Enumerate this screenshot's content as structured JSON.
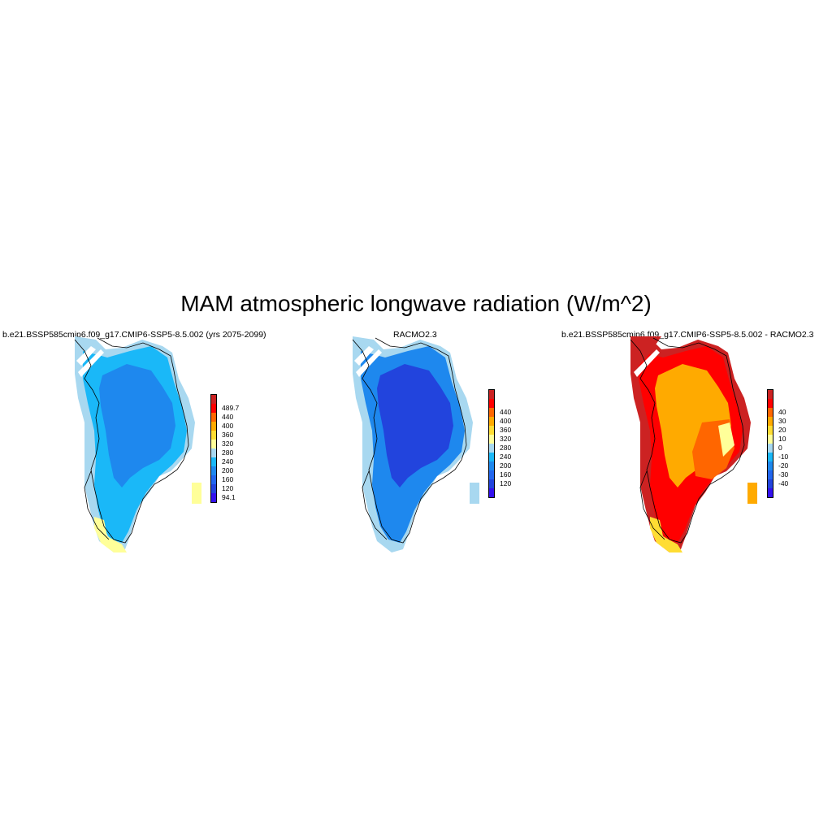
{
  "title": "MAM atmospheric longwave radiation (W/m^2)",
  "panels": [
    {
      "title": "b.e21.BSSP585cmip6.f09_g17.CMIP6-SSP5-8.5.002 (yrs 2075-2099)",
      "colorbar": {
        "colors": [
          "#cc2222",
          "#ff0000",
          "#ff6600",
          "#ffaa00",
          "#ffdd33",
          "#ffff99",
          "#a8d8f0",
          "#1ab8f8",
          "#1e88ee",
          "#2266ee",
          "#2244dd",
          "#3311ee"
        ],
        "labels": [
          "489.7",
          "440",
          "400",
          "360",
          "320",
          "280",
          "240",
          "200",
          "160",
          "120",
          "94.1"
        ]
      },
      "fields": {
        "outer": "#a8d8f0",
        "main": "#1ab8f8",
        "core": "#1e88ee",
        "accent": "#ffff99"
      }
    },
    {
      "title": "RACMO2.3",
      "colorbar": {
        "colors": [
          "#cc2222",
          "#ff0000",
          "#ff6600",
          "#ffaa00",
          "#ffdd33",
          "#ffff99",
          "#a8d8f0",
          "#1ab8f8",
          "#1e88ee",
          "#2266ee",
          "#2244dd",
          "#3311ee"
        ],
        "labels": [
          "440",
          "400",
          "360",
          "320",
          "280",
          "240",
          "200",
          "160",
          "120"
        ]
      },
      "fields": {
        "outer": "#a8d8f0",
        "main": "#1e88ee",
        "core": "#2244dd",
        "accent": "#1ab8f8"
      }
    },
    {
      "title": "b.e21.BSSP585cmip6.f09_g17.CMIP6-SSP5-8.5.002 - RACMO2.3",
      "colorbar": {
        "colors": [
          "#cc2222",
          "#ff0000",
          "#ff6600",
          "#ffaa00",
          "#ffdd33",
          "#ffff99",
          "#a8d8f0",
          "#1ab8f8",
          "#1e88ee",
          "#2266ee",
          "#2244dd",
          "#3311ee"
        ],
        "labels": [
          "40",
          "30",
          "20",
          "10",
          "0",
          "-10",
          "-20",
          "-30",
          "-40"
        ]
      },
      "fields": {
        "outer": "#cc2222",
        "main": "#ff0000",
        "core": "#ffaa00",
        "accent": "#ffdd33"
      }
    }
  ]
}
